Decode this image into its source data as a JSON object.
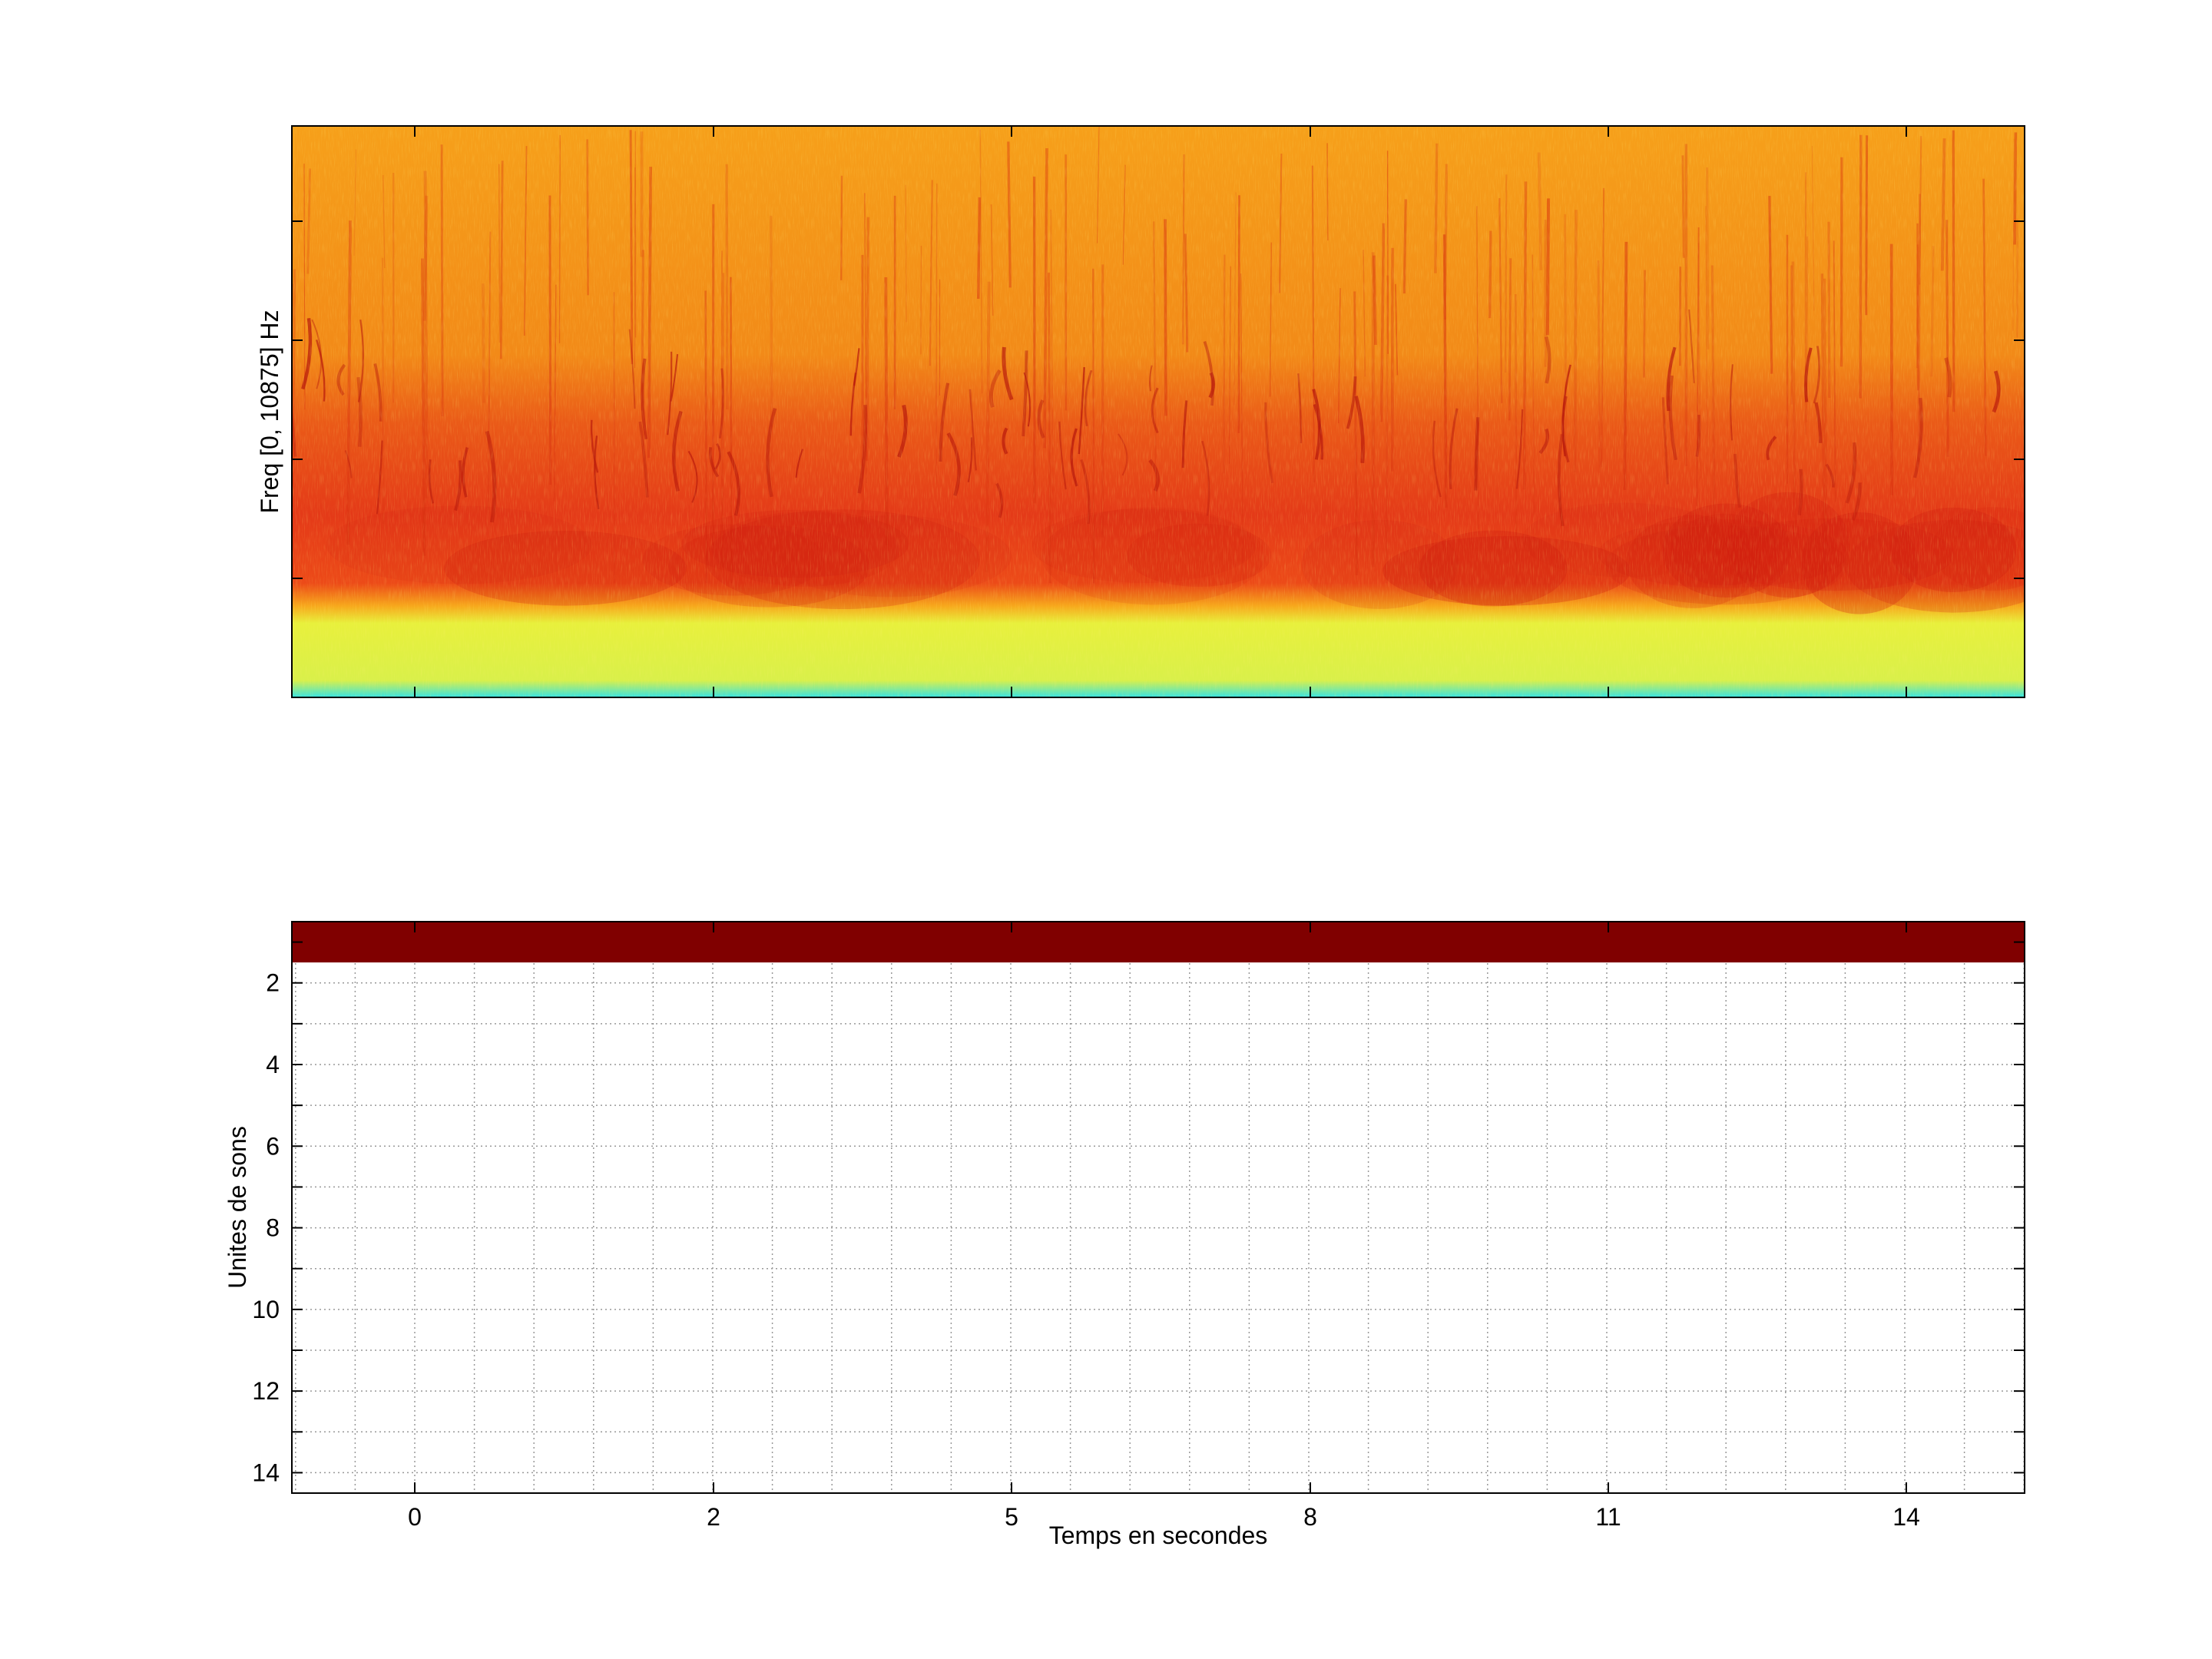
{
  "chart_data": [
    {
      "type": "heatmap",
      "title": "",
      "xlabel": "",
      "ylabel": "Freq [0, 10875] Hz",
      "x_tick_labels": [],
      "y_tick_labels": [],
      "colormap": "jet",
      "description_bands": [
        {
          "freq_fraction": [
            0.0,
            0.02
          ],
          "color": "#33e6e6"
        },
        {
          "freq_fraction": [
            0.02,
            0.14
          ],
          "color": "#e6f23a"
        },
        {
          "freq_fraction": [
            0.14,
            0.22
          ],
          "color": "#f7a01a"
        },
        {
          "freq_fraction": [
            0.22,
            0.55
          ],
          "color": "#e8381a"
        },
        {
          "freq_fraction": [
            0.55,
            1.0
          ],
          "color": "#f59a14"
        }
      ]
    },
    {
      "type": "heatmap",
      "title": "",
      "xlabel": "Temps en secondes",
      "ylabel": "Unites de sons",
      "x_tick_labels": [
        "0",
        "2",
        "5",
        "8",
        "11",
        "14"
      ],
      "y_tick_labels": [
        "2",
        "4",
        "6",
        "8",
        "10",
        "12",
        "14"
      ],
      "ylim": [
        0.5,
        14.5
      ],
      "active_rows": [
        {
          "row": 1,
          "color": "#800000"
        }
      ],
      "grid": true
    }
  ]
}
